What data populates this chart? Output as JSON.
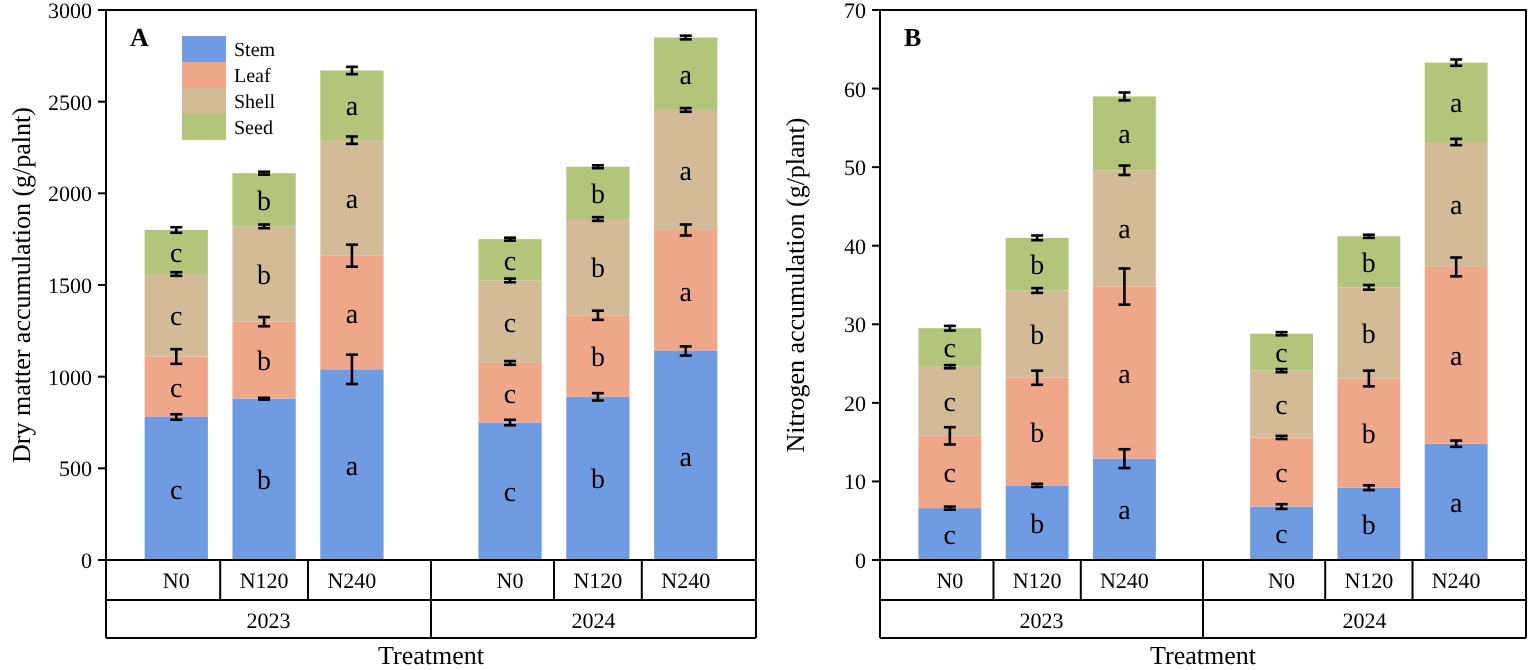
{
  "chart_data": [
    {
      "type": "bar",
      "stacked": true,
      "title": "A",
      "ylabel": "Dry matter accumulation (g/palnt)",
      "xlabel": "Treatment",
      "categories": [
        "N0",
        "N120",
        "N240",
        "N0",
        "N120",
        "N240"
      ],
      "annotations": [
        "2023",
        "2024"
      ],
      "ylim": [
        0,
        3000
      ],
      "yticks": [
        0,
        500,
        1000,
        1500,
        2000,
        2500,
        3000
      ],
      "grid": false,
      "legend": "top left",
      "series": [
        {
          "name": "Stem",
          "color": "#6f9be3",
          "values": [
            780,
            880,
            1040,
            750,
            890,
            1140
          ],
          "errors": [
            15,
            5,
            80,
            15,
            20,
            25
          ],
          "value_labels": [
            "c",
            "b",
            "a",
            "c",
            "b",
            "a"
          ]
        },
        {
          "name": "Leaf",
          "color": "#f0a68a",
          "values": [
            330,
            420,
            620,
            325,
            445,
            660
          ],
          "errors": [
            40,
            25,
            60,
            10,
            25,
            30
          ],
          "value_labels": [
            "c",
            "b",
            "a",
            "c",
            "b",
            "a"
          ]
        },
        {
          "name": "Shell",
          "color": "#d3bb98",
          "values": [
            450,
            520,
            630,
            450,
            525,
            655
          ],
          "errors": [
            10,
            10,
            20,
            10,
            10,
            10
          ],
          "value_labels": [
            "c",
            "b",
            "a",
            "c",
            "b",
            "a"
          ]
        },
        {
          "name": "Seed",
          "color": "#b3c57a",
          "values": [
            240,
            290,
            380,
            225,
            285,
            395
          ],
          "errors": [
            15,
            8,
            20,
            8,
            8,
            10
          ],
          "value_labels": [
            "c",
            "b",
            "a",
            "c",
            "b",
            "a"
          ]
        }
      ]
    },
    {
      "type": "bar",
      "stacked": true,
      "title": "B",
      "ylabel": "Nitrogen accumulation  (g/plant)",
      "xlabel": "Treatment",
      "categories": [
        "N0",
        "N120",
        "N240",
        "N0",
        "N120",
        "N240"
      ],
      "annotations": [
        "2023",
        "2024"
      ],
      "ylim": [
        0,
        70
      ],
      "yticks": [
        0,
        10,
        20,
        30,
        40,
        50,
        60,
        70
      ],
      "grid": false,
      "legend": false,
      "series": [
        {
          "color": "#6f9be3",
          "values": [
            6.6,
            9.5,
            12.9,
            6.8,
            9.2,
            14.8
          ],
          "errors": [
            0.2,
            0.2,
            1.2,
            0.3,
            0.3,
            0.4
          ],
          "value_labels": [
            "c",
            "b",
            "a",
            "c",
            "b",
            "a"
          ]
        },
        {
          "color": "#f0a68a",
          "values": [
            9.2,
            13.7,
            21.9,
            8.8,
            13.9,
            22.5
          ],
          "errors": [
            1.1,
            0.9,
            2.3,
            0.2,
            1.0,
            1.2
          ],
          "value_labels": [
            "c",
            "b",
            "a",
            "c",
            "b",
            "a"
          ]
        },
        {
          "color": "#d3bb98",
          "values": [
            8.8,
            11.1,
            14.8,
            8.5,
            11.6,
            15.9
          ],
          "errors": [
            0.2,
            0.3,
            0.6,
            0.2,
            0.3,
            0.4
          ],
          "value_labels": [
            "c",
            "b",
            "a",
            "c",
            "b",
            "a"
          ]
        },
        {
          "color": "#b3c57a",
          "values": [
            4.9,
            6.7,
            9.4,
            4.7,
            6.5,
            10.1
          ],
          "errors": [
            0.3,
            0.3,
            0.5,
            0.2,
            0.2,
            0.4
          ],
          "value_labels": [
            "c",
            "b",
            "a",
            "c",
            "b",
            "a"
          ]
        }
      ]
    }
  ]
}
